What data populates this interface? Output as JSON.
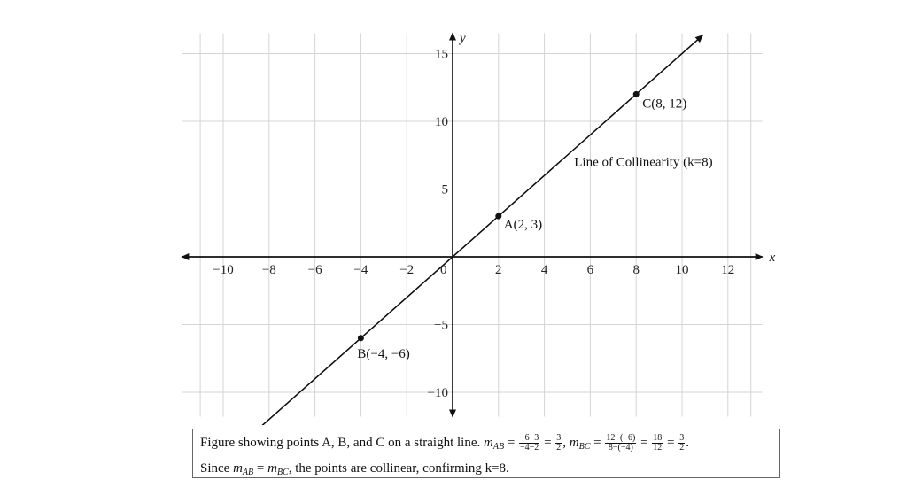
{
  "chart_data": {
    "type": "line",
    "xlabel": "x",
    "ylabel": "y",
    "xlim": [
      -11.8,
      13.5
    ],
    "ylim": [
      -11.8,
      16.5
    ],
    "grid": true,
    "x_ticks": [
      -10,
      -8,
      -6,
      -4,
      -2,
      0,
      2,
      4,
      6,
      8,
      10,
      12
    ],
    "x_tick_labels": [
      "−10",
      "−8",
      "−6",
      "−4",
      "−2",
      "0",
      "2",
      "4",
      "6",
      "8",
      "10",
      "12"
    ],
    "y_ticks": [
      -10,
      -5,
      5,
      10,
      15
    ],
    "y_tick_labels": [
      "−10",
      "−5",
      "5",
      "10",
      "15"
    ],
    "x_grid": [
      -11,
      -10,
      -8,
      -6,
      -4,
      -2,
      0,
      2,
      4,
      6,
      8,
      10,
      12,
      13
    ],
    "y_grid": [
      -10,
      -5,
      0,
      5,
      10,
      15
    ],
    "line": {
      "label": "Line of Collinearity (k=8)",
      "slope": 1.5,
      "intercept": 0,
      "x_range": [
        -8.7,
        10.9
      ]
    },
    "points": [
      {
        "name": "A",
        "label": "A(2, 3)",
        "x": 2,
        "y": 3
      },
      {
        "name": "B",
        "label": "B(−4, −6)",
        "x": -4,
        "y": -6
      },
      {
        "name": "C",
        "label": "C(8, 12)",
        "x": 8,
        "y": 12
      }
    ]
  },
  "caption": {
    "line1_prefix": "Figure showing points A, B, and C on a straight line.",
    "m": "m",
    "sub_ab": "AB",
    "sub_bc": "BC",
    "eq": "=",
    "ab_num": "−6−3",
    "ab_den": "−4−2",
    "three": "3",
    "two": "2",
    "bc_num": "12−(−6)",
    "bc_den": "8−(−4)",
    "eighteen": "18",
    "twelve": "12",
    "comma": ",",
    "period": ".",
    "line2_prefix": "Since",
    "line2_suffix": ", the points are collinear, confirming k=8."
  }
}
